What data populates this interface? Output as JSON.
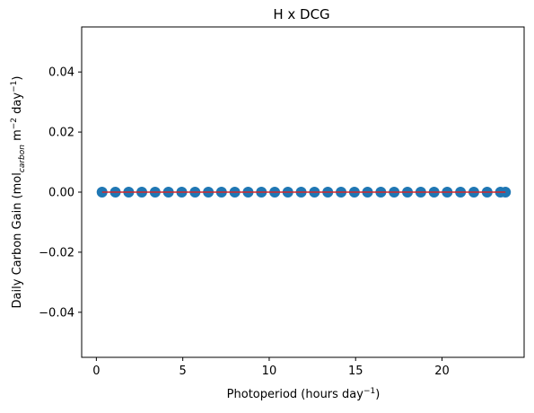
{
  "chart_data": {
    "type": "scatter",
    "title": "H x DCG",
    "xlabel": {
      "main": "Photoperiod (hours day",
      "sup": "−1",
      "tail": ")"
    },
    "ylabel": {
      "part1": "Daily Carbon Gain (mol",
      "sub": "carbon",
      "part2": " m",
      "sup1": "−2",
      "part3": " day",
      "sup2": "−1",
      "part4": ")"
    },
    "xlim": [
      -0.85,
      24.75
    ],
    "ylim": [
      -0.055,
      0.055
    ],
    "xticks": [
      0,
      5,
      10,
      15,
      20
    ],
    "xtick_labels": [
      "0",
      "5",
      "10",
      "15",
      "20"
    ],
    "yticks": [
      -0.04,
      -0.02,
      0.0,
      0.02,
      0.04
    ],
    "ytick_labels": [
      "−0.04",
      "−0.02",
      "0.00",
      "0.02",
      "0.04"
    ],
    "series": [
      {
        "marker_color": "#1f77b4",
        "x": [
          0.33,
          1.1,
          1.87,
          2.63,
          3.4,
          4.17,
          4.94,
          5.71,
          6.48,
          7.24,
          8.01,
          8.78,
          9.55,
          10.32,
          11.08,
          11.85,
          12.62,
          13.39,
          14.16,
          14.93,
          15.69,
          16.46,
          17.23,
          18.0,
          18.77,
          19.54,
          20.3,
          21.07,
          21.84,
          22.61,
          23.38,
          23.67
        ],
        "y": [
          0,
          0,
          0,
          0,
          0,
          0,
          0,
          0,
          0,
          0,
          0,
          0,
          0,
          0,
          0,
          0,
          0,
          0,
          0,
          0,
          0,
          0,
          0,
          0,
          0,
          0,
          0,
          0,
          0,
          0,
          0,
          0
        ]
      }
    ],
    "trend_line": {
      "color": "#d62728",
      "x": [
        0.33,
        23.67
      ],
      "y": [
        0,
        0
      ]
    },
    "grid": false,
    "legend": "none"
  }
}
